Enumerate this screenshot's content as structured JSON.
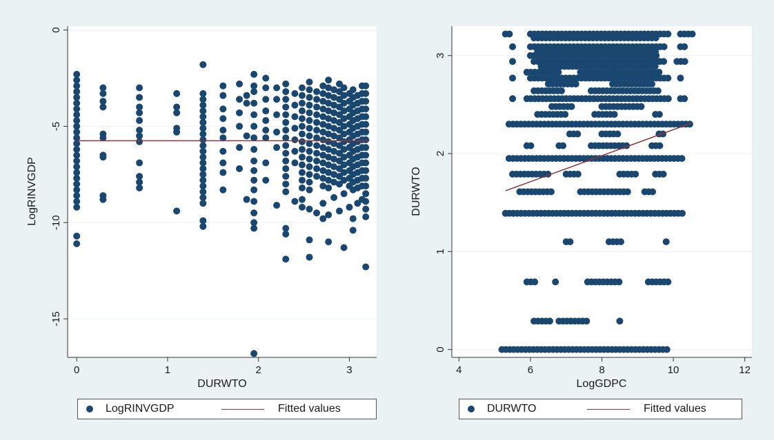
{
  "chart_data": [
    {
      "type": "scatter",
      "xlabel": "DURWTO",
      "ylabel": "LogRINVGDP",
      "xlim": [
        -0.1,
        3.3
      ],
      "ylim": [
        -17,
        0.2
      ],
      "xticks": [
        0,
        1,
        2,
        3
      ],
      "yticks": [
        0,
        -5,
        -10,
        -15
      ],
      "grid": "horizontal",
      "legend_placement": "bottom",
      "series": [
        {
          "name": "LogRINVGDP",
          "kind": "scatter",
          "color": "#1a476f",
          "columns": [
            {
              "x": 0,
              "y": [
                -2.3,
                -2.6,
                -2.9,
                -3.2,
                -3.5,
                -3.8,
                -4.1,
                -4.4,
                -4.7,
                -5.0,
                -5.3,
                -5.6,
                -5.9,
                -6.2,
                -6.5,
                -6.8,
                -7.1,
                -7.4,
                -7.7,
                -8.0,
                -8.3,
                -8.6,
                -8.9,
                -9.2,
                -10.7,
                -11.1
              ]
            },
            {
              "x": 0.29,
              "y": [
                -3.0,
                -3.3,
                -3.7,
                -4.0,
                -5.4,
                -5.6,
                -6.5,
                -6.6,
                -8.6,
                -8.8
              ]
            },
            {
              "x": 0.69,
              "y": [
                -3.0,
                -3.5,
                -4.0,
                -4.3,
                -4.7,
                -5.2,
                -5.5,
                -5.8,
                -6.9,
                -7.6,
                -7.9,
                -8.2
              ]
            },
            {
              "x": 1.1,
              "y": [
                -3.3,
                -4.0,
                -4.3,
                -5.1,
                -5.3,
                -9.4
              ]
            },
            {
              "x": 1.39,
              "y": [
                -1.8,
                -3.3,
                -3.6,
                -3.9,
                -4.2,
                -4.5,
                -4.8,
                -5.1,
                -5.4,
                -5.7,
                -6.0,
                -6.3,
                -6.6,
                -6.9,
                -7.2,
                -7.5,
                -7.8,
                -8.1,
                -8.4,
                -8.7,
                -9.0,
                -9.9,
                -10.2
              ]
            },
            {
              "x": 1.61,
              "y": [
                -2.9,
                -3.4,
                -4.1,
                -4.6,
                -5.2,
                -5.6,
                -6.3,
                -6.9,
                -7.4,
                -8.3
              ]
            },
            {
              "x": 1.79,
              "y": [
                -2.8,
                -3.6,
                -4.3,
                -5.0,
                -6.1,
                -7.2
              ]
            },
            {
              "x": 1.87,
              "y": [
                -3.4,
                -3.8,
                -5.5,
                -8.8
              ]
            },
            {
              "x": 1.95,
              "y": [
                -2.3,
                -2.9,
                -3.2,
                -3.8,
                -4.4,
                -5.0,
                -5.6,
                -6.2,
                -6.8,
                -7.3,
                -7.8,
                -8.3,
                -8.9,
                -9.5,
                -10.0,
                -10.3,
                -16.8
              ]
            },
            {
              "x": 2.08,
              "y": [
                -2.5,
                -3.0,
                -3.6,
                -4.2,
                -4.7,
                -5.2,
                -5.6,
                -6.9,
                -7.8
              ]
            },
            {
              "x": 2.2,
              "y": [
                -3.0,
                -3.6,
                -4.4,
                -5.3,
                -6.1,
                -9.1
              ]
            },
            {
              "x": 2.3,
              "y": [
                -2.8,
                -3.2,
                -3.6,
                -4.0,
                -4.4,
                -4.8,
                -5.2,
                -5.6,
                -6.0,
                -6.4,
                -6.8,
                -7.2,
                -7.6,
                -8.0,
                -8.4,
                -10.3,
                -10.6,
                -11.9
              ]
            },
            {
              "x": 2.4,
              "y": [
                -3.3,
                -3.9,
                -4.5,
                -5.1,
                -5.7,
                -6.3,
                -6.9,
                -8.9
              ]
            },
            {
              "x": 2.48,
              "y": [
                -3.0,
                -3.4,
                -3.8,
                -4.2,
                -4.6,
                -5.0,
                -5.4,
                -5.8,
                -6.2,
                -6.6,
                -7.0,
                -7.4,
                -7.8,
                -8.2,
                -8.8,
                -9.2
              ]
            },
            {
              "x": 2.56,
              "y": [
                -2.7,
                -3.1,
                -3.5,
                -3.9,
                -4.3,
                -4.7,
                -5.1,
                -5.5,
                -5.9,
                -6.3,
                -6.7,
                -7.1,
                -7.5,
                -7.9,
                -8.3,
                -9.3,
                -10.9,
                -11.8
              ]
            },
            {
              "x": 2.64,
              "y": [
                -3.2,
                -3.6,
                -4.0,
                -4.4,
                -4.8,
                -5.2,
                -5.6,
                -6.0,
                -6.4,
                -6.8,
                -7.2,
                -7.6,
                -9.5
              ]
            },
            {
              "x": 2.71,
              "y": [
                -2.9,
                -3.3,
                -3.7,
                -4.1,
                -4.5,
                -4.9,
                -5.3,
                -5.7,
                -6.1,
                -6.5,
                -6.9,
                -7.3,
                -7.7,
                -8.1,
                -9.0,
                -9.8
              ]
            },
            {
              "x": 2.77,
              "y": [
                -2.6,
                -3.0,
                -3.4,
                -3.8,
                -4.2,
                -4.6,
                -5.0,
                -5.4,
                -5.8,
                -6.2,
                -6.6,
                -7.0,
                -7.4,
                -7.8,
                -8.2,
                -9.6,
                -11.0
              ]
            },
            {
              "x": 2.83,
              "y": [
                -3.1,
                -3.5,
                -3.9,
                -4.3,
                -4.7,
                -5.1,
                -5.5,
                -5.9,
                -6.3,
                -6.7,
                -7.1,
                -7.5,
                -7.9,
                -8.7
              ]
            },
            {
              "x": 2.89,
              "y": [
                -2.8,
                -3.2,
                -3.6,
                -4.0,
                -4.4,
                -4.8,
                -5.2,
                -5.6,
                -6.0,
                -6.4,
                -6.8,
                -7.2,
                -7.6,
                -8.0,
                -9.4
              ]
            },
            {
              "x": 2.94,
              "y": [
                -3.0,
                -3.4,
                -3.8,
                -4.2,
                -4.6,
                -5.0,
                -5.4,
                -5.8,
                -6.2,
                -6.6,
                -7.0,
                -7.4,
                -7.8,
                -8.5,
                -11.3
              ]
            },
            {
              "x": 3.0,
              "y": [
                -3.3,
                -3.7,
                -4.1,
                -4.5,
                -4.9,
                -5.3,
                -5.7,
                -6.1,
                -6.5,
                -6.9,
                -7.3,
                -7.7,
                -8.1,
                -9.2
              ]
            },
            {
              "x": 3.04,
              "y": [
                -3.1,
                -3.5,
                -3.9,
                -4.3,
                -4.7,
                -5.1,
                -5.5,
                -5.9,
                -6.3,
                -6.7,
                -7.1,
                -7.5,
                -7.9,
                -8.3,
                -9.8,
                -10.4
              ]
            },
            {
              "x": 3.09,
              "y": [
                -3.4,
                -3.8,
                -4.2,
                -4.6,
                -5.0,
                -5.4,
                -5.8,
                -6.2,
                -6.6,
                -7.0,
                -7.4,
                -7.8,
                -8.2,
                -9.0
              ]
            },
            {
              "x": 3.14,
              "y": [
                -2.9,
                -3.3,
                -3.7,
                -4.1,
                -4.5,
                -4.9,
                -5.3,
                -5.7,
                -6.1,
                -6.5,
                -6.9,
                -7.3,
                -7.7,
                -8.1,
                -8.8
              ]
            },
            {
              "x": 3.18,
              "y": [
                -2.9,
                -3.3,
                -3.7,
                -4.1,
                -4.5,
                -4.9,
                -5.3,
                -5.7,
                -6.1,
                -6.5,
                -6.9,
                -7.3,
                -7.7,
                -8.1,
                -8.5,
                -8.9,
                -9.3,
                -9.7,
                -12.3
              ]
            }
          ]
        },
        {
          "name": "Fitted values",
          "kind": "line",
          "color": "#90353b",
          "x": [
            0,
            3.22
          ],
          "y": [
            -5.75,
            -5.75
          ]
        }
      ],
      "legend": [
        "LogRINVGDP",
        "Fitted values"
      ]
    },
    {
      "type": "scatter",
      "xlabel": "LogGDPC",
      "ylabel": "DURWTO",
      "xlim": [
        3.8,
        12.2
      ],
      "ylim": [
        -0.08,
        3.3
      ],
      "xticks": [
        4,
        6,
        8,
        10,
        12
      ],
      "yticks": [
        0,
        1,
        2,
        3
      ],
      "grid": "horizontal",
      "legend_placement": "bottom",
      "series": [
        {
          "name": "DURWTO",
          "kind": "scatter",
          "color": "#1a476f",
          "rows": [
            {
              "y": 3.22,
              "segments": [
                [
                  5.3,
                  5.5
                ],
                [
                  6.0,
                  9.9
                ],
                [
                  10.2,
                  10.6
                ]
              ]
            },
            {
              "y": 3.18,
              "segments": [
                [
                  6.1,
                  9.6
                ]
              ]
            },
            {
              "y": 3.09,
              "segments": [
                [
                  5.5,
                  5.6
                ],
                [
                  6.0,
                  9.8
                ],
                [
                  10.2,
                  10.4
                ]
              ]
            },
            {
              "y": 3.04,
              "segments": [
                [
                  6.2,
                  9.5
                ]
              ]
            },
            {
              "y": 3.0,
              "segments": [
                [
                  6.0,
                  9.6
                ]
              ]
            },
            {
              "y": 2.94,
              "segments": [
                [
                  5.5,
                  5.6
                ],
                [
                  6.1,
                  9.8
                ],
                [
                  10.1,
                  10.4
                ]
              ]
            },
            {
              "y": 2.89,
              "segments": [
                [
                  6.3,
                  9.5
                ]
              ]
            },
            {
              "y": 2.83,
              "segments": [
                [
                  5.9,
                  6.8
                ],
                [
                  7.4,
                  9.6
                ]
              ]
            },
            {
              "y": 2.77,
              "segments": [
                [
                  5.5,
                  5.6
                ],
                [
                  6.0,
                  9.9
                ],
                [
                  10.2,
                  10.3
                ]
              ]
            },
            {
              "y": 2.71,
              "segments": [
                [
                  6.5,
                  7.3
                ],
                [
                  8.3,
                  9.4
                ]
              ]
            },
            {
              "y": 2.64,
              "segments": [
                [
                  6.1,
                  6.9
                ],
                [
                  7.7,
                  9.6
                ]
              ]
            },
            {
              "y": 2.56,
              "segments": [
                [
                  5.5,
                  5.6
                ],
                [
                  5.9,
                  9.9
                ],
                [
                  10.2,
                  10.4
                ]
              ]
            },
            {
              "y": 2.48,
              "segments": [
                [
                  6.6,
                  7.2
                ],
                [
                  8.0,
                  9.1
                ]
              ]
            },
            {
              "y": 2.4,
              "segments": [
                [
                  6.2,
                  7.0
                ],
                [
                  7.8,
                  8.4
                ],
                [
                  9.5,
                  9.7
                ]
              ]
            },
            {
              "y": 2.3,
              "segments": [
                [
                  5.4,
                  10.5
                ]
              ]
            },
            {
              "y": 2.2,
              "segments": [
                [
                  7.1,
                  7.4
                ],
                [
                  8.0,
                  8.5
                ],
                [
                  9.6,
                  9.8
                ]
              ]
            },
            {
              "y": 2.08,
              "segments": [
                [
                  5.9,
                  6.1
                ],
                [
                  6.8,
                  7.0
                ],
                [
                  7.7,
                  8.7
                ],
                [
                  9.4,
                  9.7
                ]
              ]
            },
            {
              "y": 1.95,
              "segments": [
                [
                  5.4,
                  10.3
                ]
              ]
            },
            {
              "y": 1.79,
              "segments": [
                [
                  5.5,
                  6.5
                ],
                [
                  7.0,
                  7.4
                ],
                [
                  8.5,
                  9.0
                ],
                [
                  9.5,
                  9.8
                ]
              ]
            },
            {
              "y": 1.61,
              "segments": [
                [
                  5.7,
                  6.6
                ],
                [
                  7.4,
                  8.8
                ],
                [
                  9.2,
                  9.5
                ]
              ]
            },
            {
              "y": 1.39,
              "segments": [
                [
                  5.3,
                  10.3
                ]
              ]
            },
            {
              "y": 1.1,
              "segments": [
                [
                  7.0,
                  7.2
                ],
                [
                  8.2,
                  8.6
                ],
                [
                  9.8,
                  9.9
                ]
              ]
            },
            {
              "y": 0.69,
              "segments": [
                [
                  5.9,
                  6.2
                ],
                [
                  6.7,
                  6.8
                ],
                [
                  7.6,
                  8.5
                ],
                [
                  9.3,
                  9.9
                ]
              ]
            },
            {
              "y": 0.29,
              "segments": [
                [
                  6.1,
                  6.6
                ],
                [
                  6.8,
                  7.6
                ],
                [
                  8.5,
                  8.6
                ]
              ]
            },
            {
              "y": 0.0,
              "segments": [
                [
                  5.2,
                  9.9
                ]
              ]
            }
          ]
        },
        {
          "name": "Fitted values",
          "kind": "line",
          "color": "#90353b",
          "x": [
            5.3,
            10.5
          ],
          "y": [
            1.62,
            2.31
          ]
        }
      ],
      "legend": [
        "DURWTO",
        "Fitted values"
      ]
    }
  ]
}
